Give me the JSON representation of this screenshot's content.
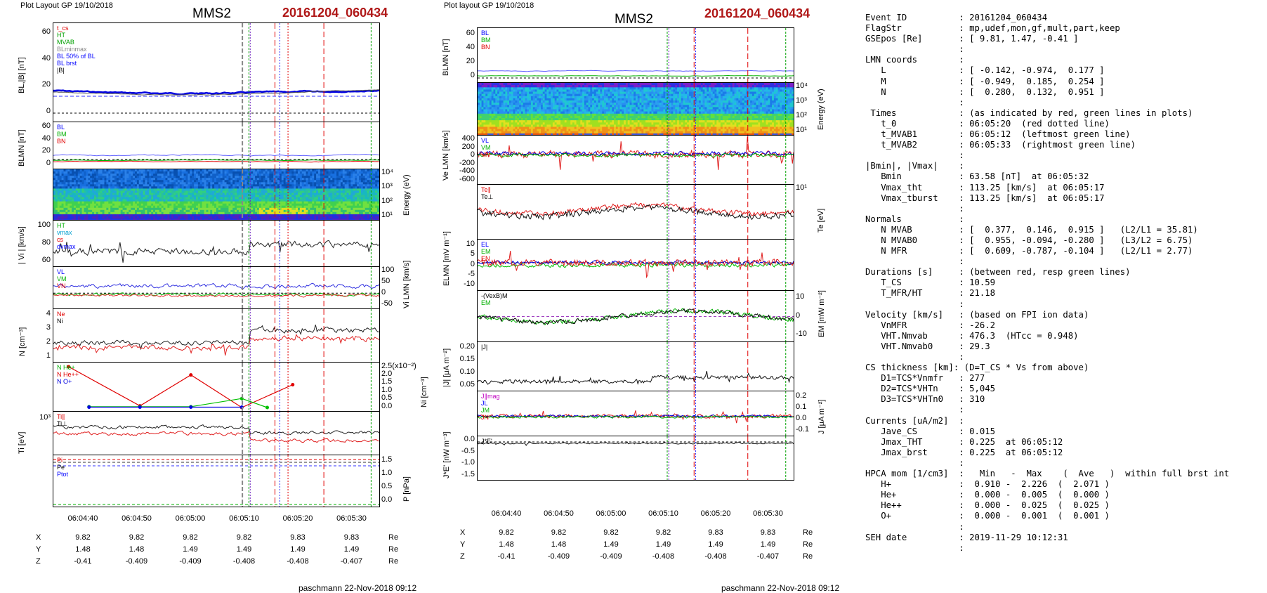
{
  "left": {
    "layout_note": "Plot Layout GP 19/10/2018",
    "sc": "MMS2",
    "event": "20161204_060434",
    "footer": "paschmann 22-Nov-2018 09:12",
    "panels": [
      {
        "ylabel": "BL,|B| [nT]",
        "ticks": [
          "60",
          "40",
          "20",
          "0"
        ],
        "legend": [
          "t_cs",
          "HT",
          "MVAB",
          "BLminmax",
          "BL 50% of BL",
          "BL brst",
          "|B|"
        ]
      },
      {
        "ylabel": "BLMN [nT]",
        "ticks": [
          "60",
          "40",
          "20",
          "0"
        ],
        "legend": [
          "BL",
          "BM",
          "BN"
        ]
      },
      {
        "ylabel": "",
        "rlabel": "Energy (eV)",
        "rticks": [
          "10⁴",
          "10³",
          "10²",
          "10¹"
        ]
      },
      {
        "ylabel": "| Vi | [km/s]",
        "ticks": [
          "100",
          "80",
          "60"
        ],
        "legend": [
          "HT",
          "vmax",
          "cs",
          "dvmax"
        ]
      },
      {
        "ylabel": "",
        "rlabel": "Vi LMN [km/s]",
        "rticks": [
          "100",
          "50",
          "0",
          "-50"
        ],
        "legend": [
          "VL",
          "VM",
          "VN"
        ]
      },
      {
        "ylabel": "N [cm⁻³]",
        "ticks": [
          "4",
          "3",
          "2",
          "1"
        ],
        "legend": [
          "Ne",
          "Ni"
        ]
      },
      {
        "ylabel": "",
        "rlabel": "Ni [cm⁻³]",
        "rticks": [
          "2.5(x10⁻²)",
          "2.0",
          "1.5",
          "1.0",
          "0.5",
          "0.0"
        ],
        "legend": [
          "N  He+",
          "N  He++",
          "N  O+"
        ]
      },
      {
        "ylabel": "Ti [eV]",
        "ticks": [
          "10³"
        ],
        "legend": [
          "Ti∥",
          "Ti⊥"
        ]
      },
      {
        "ylabel": "",
        "rlabel": "P [nPa]",
        "rticks": [
          "1.5",
          "1.0",
          "0.5",
          "0.0"
        ],
        "legend": [
          "Pi",
          "Pe",
          "Ptot"
        ]
      }
    ],
    "time_ticks": [
      "06:04:40",
      "06:04:50",
      "06:05:00",
      "06:05:10",
      "06:05:20",
      "06:05:30"
    ],
    "coords": {
      "labels": [
        "X",
        "Y",
        "Z"
      ],
      "X": [
        "9.82",
        "9.82",
        "9.82",
        "9.82",
        "9.83",
        "9.83"
      ],
      "Y": [
        "1.48",
        "1.48",
        "1.49",
        "1.49",
        "1.49",
        "1.49"
      ],
      "Z": [
        "-0.41",
        "-0.409",
        "-0.409",
        "-0.408",
        "-0.408",
        "-0.407"
      ],
      "unit": "Re"
    }
  },
  "middle": {
    "layout_note": "Plot layout GP 19/10/2018",
    "sc": "MMS2",
    "event": "20161204_060434",
    "footer": "paschmann 22-Nov-2018 09:12",
    "panels": [
      {
        "ylabel": "BLMN [nT]",
        "ticks": [
          "60",
          "40",
          "20",
          "0"
        ],
        "legend": [
          "BL",
          "BM",
          "BN"
        ]
      },
      {
        "ylabel": "",
        "rlabel": "Energy (eV)",
        "rticks": [
          "10⁴",
          "10³",
          "10²",
          "10¹"
        ]
      },
      {
        "ylabel": "Ve LMN [km/s]",
        "ticks": [
          "400",
          "200",
          "0",
          "-200",
          "-400",
          "-600"
        ],
        "legend": [
          "VL",
          "VM",
          "VN"
        ]
      },
      {
        "ylabel": "",
        "rlabel": "Te [eV]",
        "rticks": [
          "10¹"
        ],
        "legend": [
          "Te∥",
          "Te⊥"
        ]
      },
      {
        "ylabel": "ELMN [mV m⁻¹]",
        "ticks": [
          "10",
          "5",
          "0",
          "-5",
          "-10"
        ],
        "legend": [
          "EL",
          "EM",
          "EN"
        ]
      },
      {
        "ylabel": "",
        "rlabel": "EM [mW m⁻²]",
        "rticks": [
          "10",
          "0",
          "-10"
        ],
        "legend": [
          "-(VexB)M",
          "EM"
        ]
      },
      {
        "ylabel": "|J| [μA m⁻²]",
        "ticks": [
          "0.20",
          "0.15",
          "0.10",
          "0.05"
        ],
        "legend": [
          "|J|"
        ]
      },
      {
        "ylabel": "",
        "rlabel": "J [μA m⁻²]",
        "rticks": [
          "0.2",
          "0.1",
          "0.0",
          "-0.1"
        ],
        "legend": [
          "J∥mag",
          "JL",
          "JM",
          "JN"
        ]
      },
      {
        "ylabel": "J*E' [nW m⁻³]",
        "ticks": [
          "0.0",
          "-0.5",
          "-1.0",
          "-1.5"
        ],
        "legend": [
          "J*E'"
        ]
      }
    ],
    "time_ticks": [
      "06:04:40",
      "06:04:50",
      "06:05:00",
      "06:05:10",
      "06:05:20",
      "06:05:30"
    ],
    "coords": {
      "labels": [
        "X",
        "Y",
        "Z"
      ],
      "X": [
        "9.82",
        "9.82",
        "9.82",
        "9.82",
        "9.83",
        "9.83"
      ],
      "Y": [
        "1.48",
        "1.48",
        "1.49",
        "1.49",
        "1.49",
        "1.49"
      ],
      "Z": [
        "-0.41",
        "-0.409",
        "-0.409",
        "-0.408",
        "-0.408",
        "-0.407"
      ],
      "unit": "Re"
    }
  },
  "info_lines": [
    "Event ID          : 20161204_060434",
    "FlagStr           : mp,udef,mon,gf,mult,part,keep",
    "GSEpos [Re]       : [ 9.81, 1.47, -0.41 ]",
    "                  :",
    "LMN coords        :",
    "   L              : [ -0.142, -0.974,  0.177 ]",
    "   M              : [ -0.949,  0.185,  0.254 ]",
    "   N              : [  0.280,  0.132,  0.951 ]",
    "                  :",
    " Times            : (as indicated by red, green lines in plots)",
    "   t_0            : 06:05:20  (red dotted line)",
    "   t_MVAB1        : 06:05:12  (leftmost green line)",
    "   t_MVAB2        : 06:05:33  (rightmost green line)",
    "                  :",
    "|Bmin|, |Vmax|    :",
    "   Bmin           : 63.58 [nT]  at 06:05:32",
    "   Vmax_tht       : 113.25 [km/s]  at 06:05:17",
    "   Vmax_tburst    : 113.25 [km/s]  at 06:05:17",
    "                  :",
    "Normals           :",
    "   N MVAB         : [  0.377,  0.146,  0.915 ]   (L2/L1 = 35.81)",
    "   N MVAB0        : [  0.955, -0.094, -0.280 ]   (L3/L2 = 6.75)",
    "   N MFR          : [  0.609, -0.787, -0.104 ]   (L2/L1 = 2.77)",
    "                  :",
    "Durations [s]     : (between red, resp green lines)",
    "   T_CS           : 10.59",
    "   T_MFR/HT       : 21.18",
    "                  :",
    "Velocity [km/s]   : (based on FPI ion data)",
    "   VnMFR          : -26.2",
    "   VHT.Nmvab      : 476.3  (HTcc = 0.948)",
    "   VHT.Nmvab0     : 29.3",
    "                  :",
    "CS thickness [km]: (D=T_CS * Vs from above)",
    "   D1=TCS*Vnmfr   : 277",
    "   D2=TCS*VHTn    : 5,045",
    "   D3=TCS*VHTn0   : 310",
    "                  :",
    "Currents [uA/m2]  :",
    "   Jave_CS        : 0.015",
    "   Jmax_THT       : 0.225  at 06:05:12",
    "   Jmax_brst      : 0.225  at 06:05:12",
    "                  :",
    "HPCA mom [1/cm3]  :   Min   -  Max    (  Ave   )  within full brst int",
    "   H+             :  0.910 -  2.226  (  2.071 )",
    "   He+            :  0.000 -  0.005  (  0.000 )",
    "   He++           :  0.000 -  0.025  (  0.025 )",
    "   O+             :  0.000 -  0.001  (  0.001 )",
    "                  :",
    "SEH date          : 2019-11-29 10:12:31",
    "                  :"
  ],
  "chart_data": [
    {
      "type": "line",
      "title": "MMS2 20161204_060434",
      "x_ticks": [
        "06:04:40",
        "06:04:50",
        "06:05:00",
        "06:05:10",
        "06:05:20",
        "06:05:30"
      ],
      "markers": {
        "t_0": "06:05:20",
        "t_MVAB1": "06:05:12",
        "t_MVAB2": "06:05:33"
      },
      "ni_minor_species": {
        "series": [
          {
            "name": "N  He++",
            "x": [
              "06:04:36",
              "06:04:50",
              "06:05:00",
              "06:05:10",
              "06:05:20"
            ],
            "values": [
              2.5,
              0.1,
              2.0,
              0.0,
              1.4
            ]
          },
          {
            "name": "N  He+",
            "x": [
              "06:04:40",
              "06:04:50",
              "06:05:00",
              "06:05:10",
              "06:05:15"
            ],
            "values": [
              0.05,
              0.05,
              0.05,
              0.55,
              0.0
            ]
          },
          {
            "name": "N  O+",
            "x": [
              "06:04:40",
              "06:04:50",
              "06:05:00",
              "06:05:10"
            ],
            "values": [
              0.02,
              0.02,
              0.02,
              0.02
            ]
          }
        ]
      }
    }
  ]
}
